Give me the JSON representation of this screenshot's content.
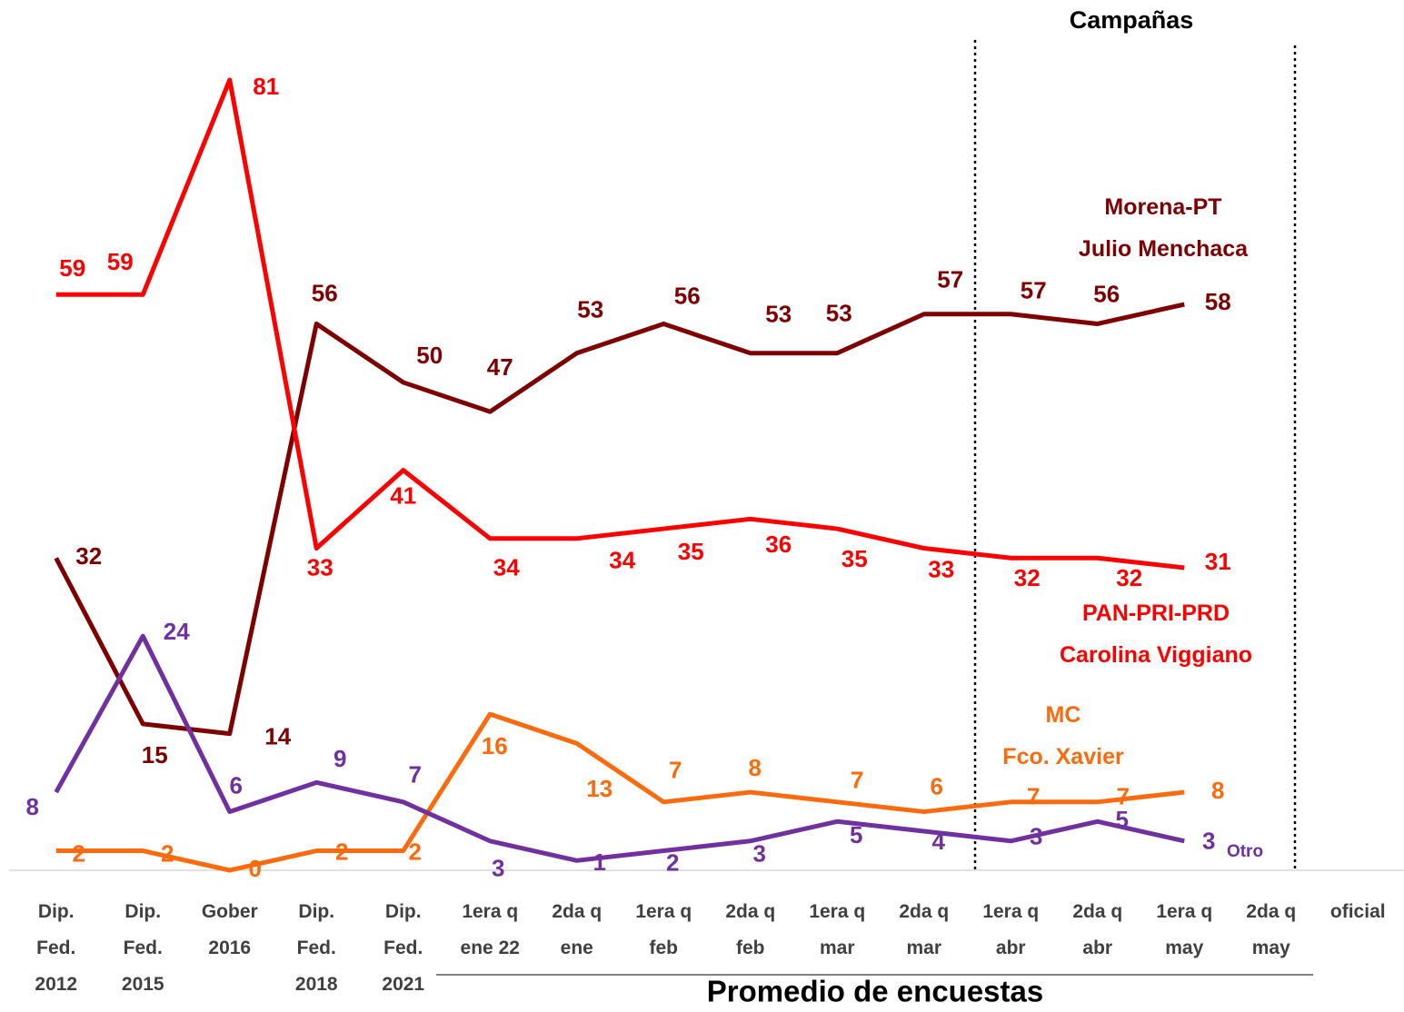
{
  "chart_data": {
    "type": "line",
    "annotations": [
      "Campañas",
      "Promedio de encuestas"
    ],
    "categories": [
      "Dip.\nFed.\n2012",
      "Dip.\nFed.\n2015",
      "Gober\n2016",
      "Dip.\nFed.\n2018",
      "Dip.\nFed.\n2021",
      "1era q\nene 22",
      "2da q\nene",
      "1era q\nfeb",
      "2da q\nfeb",
      "1era q\nmar",
      "2da q\nmar",
      "1era q\nabr",
      "2da q\nabr",
      "1era q\nmay",
      "2da q\nmay",
      "oficial"
    ],
    "series": [
      {
        "name": "Morena-PT\nJulio Menchaca",
        "color": "#7f0000",
        "values": [
          32,
          15,
          14,
          56,
          50,
          47,
          53,
          56,
          53,
          53,
          57,
          57,
          56,
          58,
          null,
          null
        ]
      },
      {
        "name": "PAN-PRI-PRD\nCarolina Viggiano",
        "color": "#ff0000",
        "values": [
          59,
          59,
          81,
          33,
          41,
          34,
          34,
          35,
          36,
          35,
          33,
          32,
          32,
          31,
          null,
          null
        ]
      },
      {
        "name": "MC\nFco. Xavier",
        "color": "#fb6b0d",
        "values": [
          2,
          2,
          0,
          2,
          2,
          16,
          13,
          7,
          8,
          7,
          6,
          7,
          7,
          8,
          null,
          null
        ]
      },
      {
        "name": "Otro",
        "color": "#7030a0",
        "values": [
          8,
          24,
          6,
          9,
          7,
          3,
          1,
          2,
          3,
          5,
          4,
          3,
          5,
          3,
          null,
          null
        ]
      }
    ],
    "ylim": [
      0,
      85
    ]
  }
}
